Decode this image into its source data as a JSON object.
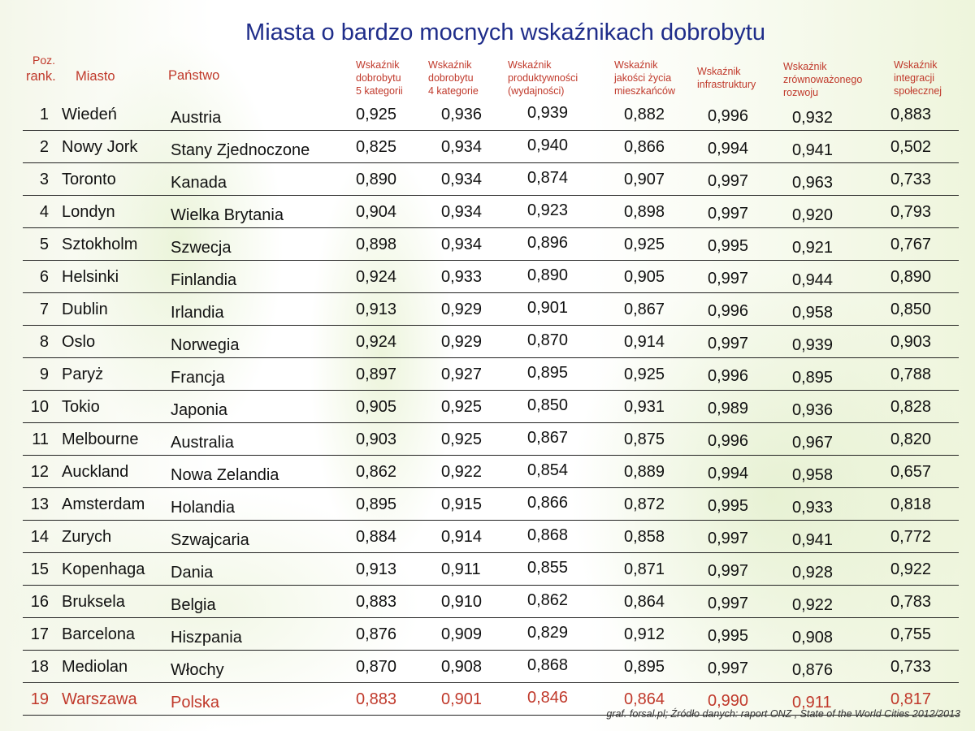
{
  "title": "Miasta o bardzo mocnych wskaźnikach dobrobytu",
  "headers": {
    "rank_line1": "Poz.",
    "rank_line2": "rank.",
    "city": "Miasto",
    "country": "Państwo",
    "indicators": [
      [
        "Wskaźnik",
        "dobrobytu",
        "5 kategorii"
      ],
      [
        "Wskaźnik",
        "dobrobytu",
        "4 kategorie"
      ],
      [
        "Wskaźnik",
        "produktywności",
        "(wydajności)"
      ],
      [
        "Wskaźnik",
        "jakości życia",
        "mieszkańców"
      ],
      [
        "Wskaźnik",
        "infrastruktury"
      ],
      [
        "Wskaźnik",
        "zrównoważonego",
        "rozwoju"
      ],
      [
        "Wskaźnik",
        "integracji",
        "społecznej"
      ]
    ]
  },
  "rows": [
    {
      "rank": "1",
      "city": "Wiedeń",
      "country": "Austria",
      "values": [
        "0,925",
        "0,936",
        "0,939",
        "0,882",
        "0,996",
        "0,932",
        "0,883"
      ]
    },
    {
      "rank": "2",
      "city": "Nowy Jork",
      "country": "Stany Zjednoczone",
      "values": [
        "0,825",
        "0,934",
        "0,940",
        "0,866",
        "0,994",
        "0,941",
        "0,502"
      ]
    },
    {
      "rank": "3",
      "city": "Toronto",
      "country": "Kanada",
      "values": [
        "0,890",
        "0,934",
        "0,874",
        "0,907",
        "0,997",
        "0,963",
        "0,733"
      ]
    },
    {
      "rank": "4",
      "city": "Londyn",
      "country": "Wielka Brytania",
      "values": [
        "0,904",
        "0,934",
        "0,923",
        "0,898",
        "0,997",
        "0,920",
        "0,793"
      ]
    },
    {
      "rank": "5",
      "city": "Sztokholm",
      "country": "Szwecja",
      "values": [
        "0,898",
        "0,934",
        "0,896",
        "0,925",
        "0,995",
        "0,921",
        "0,767"
      ]
    },
    {
      "rank": "6",
      "city": "Helsinki",
      "country": "Finlandia",
      "values": [
        "0,924",
        "0,933",
        "0,890",
        "0,905",
        "0,997",
        "0,944",
        "0,890"
      ]
    },
    {
      "rank": "7",
      "city": "Dublin",
      "country": "Irlandia",
      "values": [
        "0,913",
        "0,929",
        "0,901",
        "0,867",
        "0,996",
        "0,958",
        "0,850"
      ]
    },
    {
      "rank": "8",
      "city": "Oslo",
      "country": "Norwegia",
      "values": [
        "0,924",
        "0,929",
        "0,870",
        "0,914",
        "0,997",
        "0,939",
        "0,903"
      ]
    },
    {
      "rank": "9",
      "city": "Paryż",
      "country": "Francja",
      "values": [
        "0,897",
        "0,927",
        "0,895",
        "0,925",
        "0,996",
        "0,895",
        "0,788"
      ]
    },
    {
      "rank": "10",
      "city": "Tokio",
      "country": "Japonia",
      "values": [
        "0,905",
        "0,925",
        "0,850",
        "0,931",
        "0,989",
        "0,936",
        "0,828"
      ]
    },
    {
      "rank": "11",
      "city": "Melbourne",
      "country": "Australia",
      "values": [
        "0,903",
        "0,925",
        "0,867",
        "0,875",
        "0,996",
        "0,967",
        "0,820"
      ]
    },
    {
      "rank": "12",
      "city": "Auckland",
      "country": "Nowa Zelandia",
      "values": [
        "0,862",
        "0,922",
        "0,854",
        "0,889",
        "0,994",
        "0,958",
        "0,657"
      ]
    },
    {
      "rank": "13",
      "city": "Amsterdam",
      "country": "Holandia",
      "values": [
        "0,895",
        "0,915",
        "0,866",
        "0,872",
        "0,995",
        "0,933",
        "0,818"
      ]
    },
    {
      "rank": "14",
      "city": "Zurych",
      "country": "Szwajcaria",
      "values": [
        "0,884",
        "0,914",
        "0,868",
        "0,858",
        "0,997",
        "0,941",
        "0,772"
      ]
    },
    {
      "rank": "15",
      "city": "Kopenhaga",
      "country": "Dania",
      "values": [
        "0,913",
        "0,911",
        "0,855",
        "0,871",
        "0,997",
        "0,928",
        "0,922"
      ]
    },
    {
      "rank": "16",
      "city": "Bruksela",
      "country": "Belgia",
      "values": [
        "0,883",
        "0,910",
        "0,862",
        "0,864",
        "0,997",
        "0,922",
        "0,783"
      ]
    },
    {
      "rank": "17",
      "city": "Barcelona",
      "country": "Hiszpania",
      "values": [
        "0,876",
        "0,909",
        "0,829",
        "0,912",
        "0,995",
        "0,908",
        "0,755"
      ]
    },
    {
      "rank": "18",
      "city": "Mediolan",
      "country": "Włochy",
      "values": [
        "0,870",
        "0,908",
        "0,868",
        "0,895",
        "0,997",
        "0,876",
        "0,733"
      ]
    },
    {
      "rank": "19",
      "city": "Warszawa",
      "country": "Polska",
      "values": [
        "0,883",
        "0,901",
        "0,846",
        "0,864",
        "0,990",
        "0,911",
        "0,817"
      ],
      "highlight": true
    }
  ],
  "source": "graf. forsal.pl; Źródło danych: raport ONZ , State of the World Cities 2012/2013",
  "colors": {
    "title": "#1f2d8a",
    "header": "#c0392b",
    "highlight": "#c0392b"
  }
}
